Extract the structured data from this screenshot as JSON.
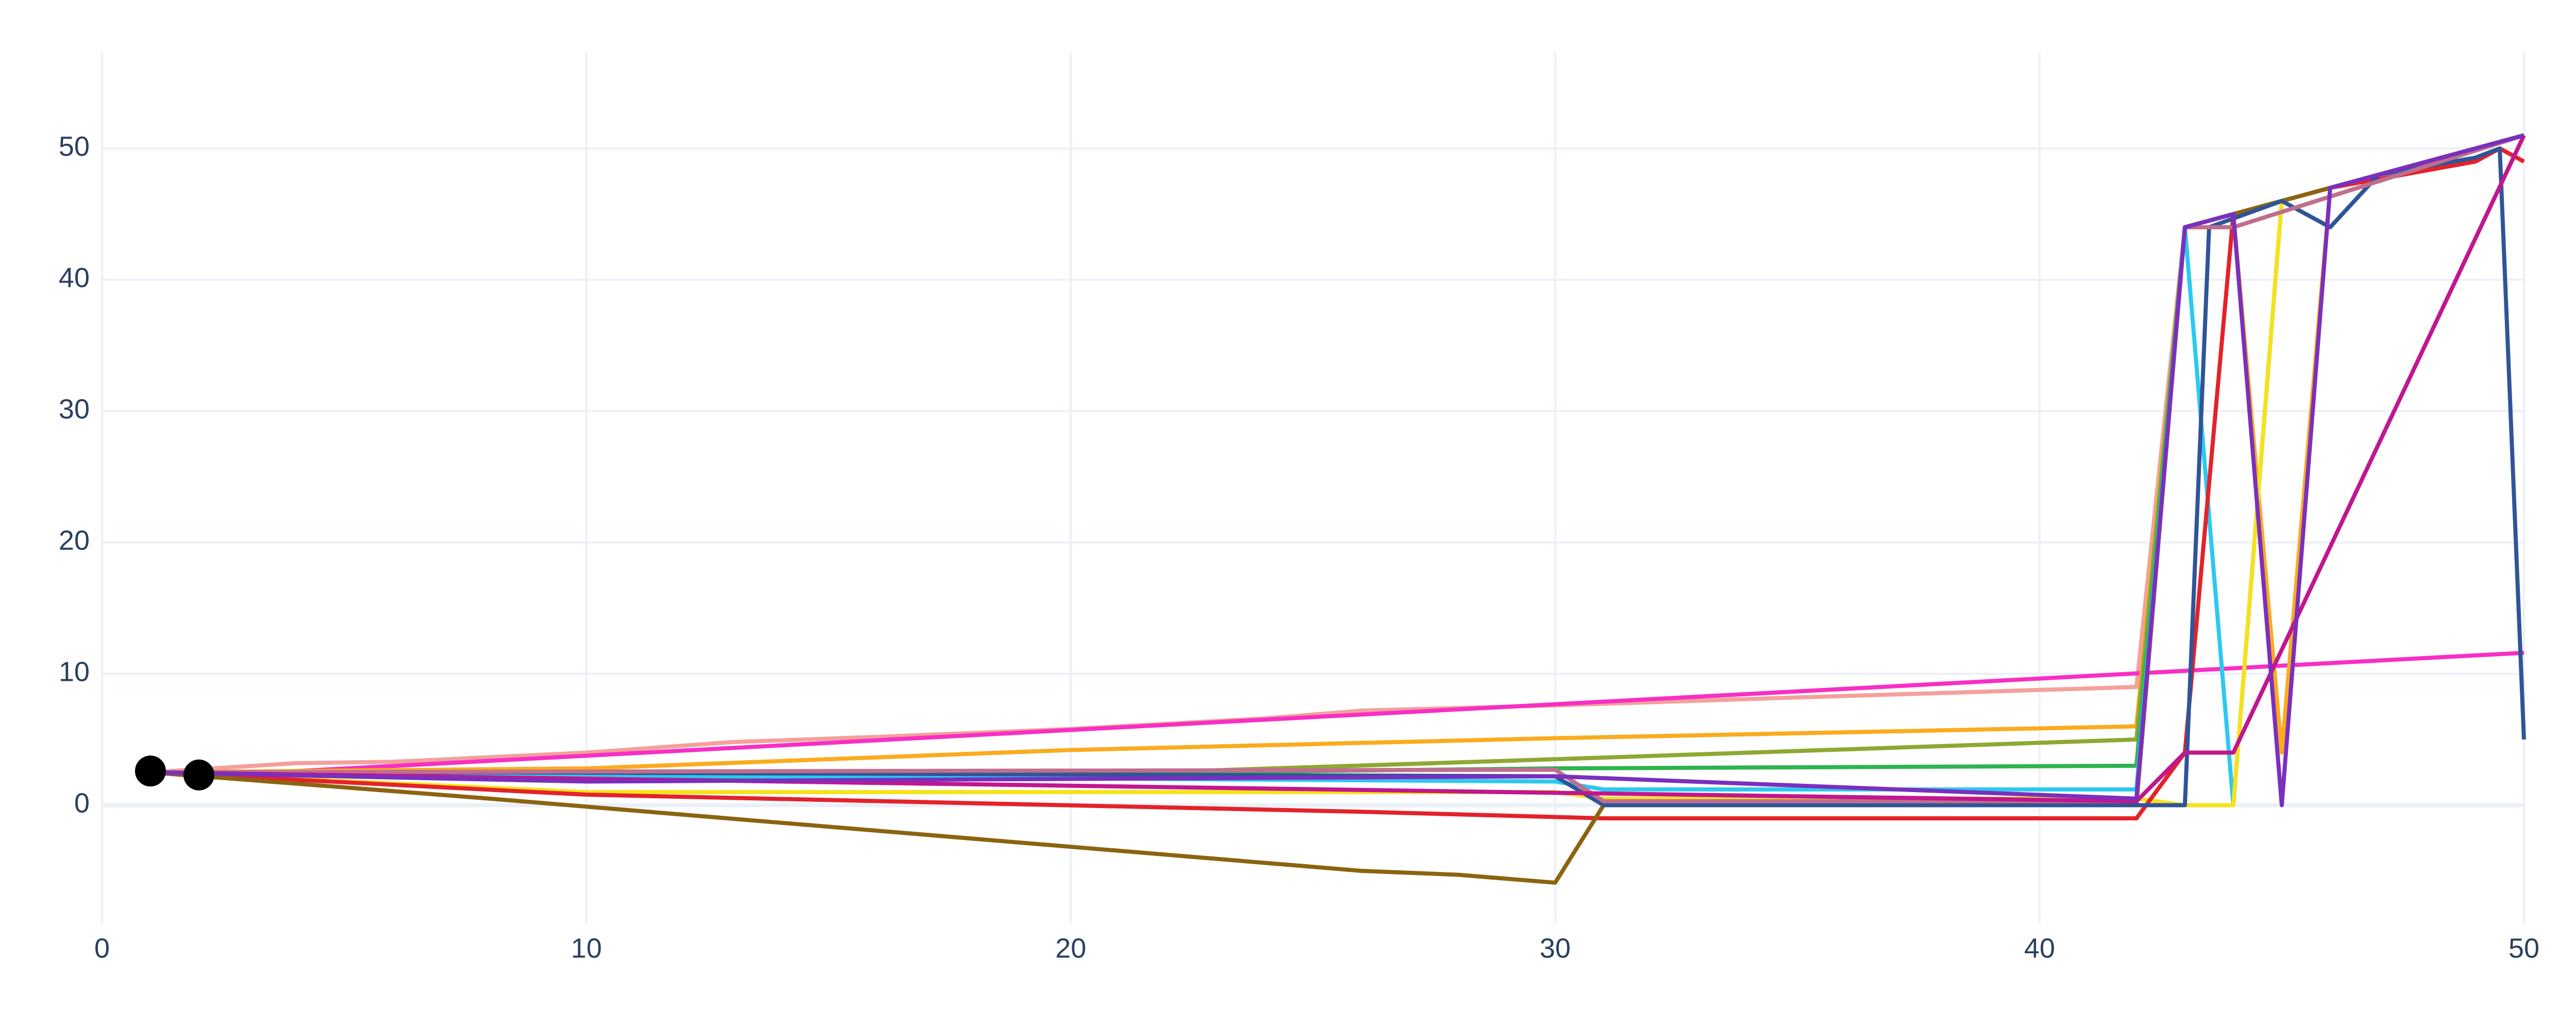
{
  "chart_data": {
    "type": "line",
    "xlim": [
      0,
      50
    ],
    "ylim": [
      -9,
      57.3
    ],
    "xticks": [
      0,
      10,
      20,
      30,
      40,
      50
    ],
    "yticks": [
      0,
      10,
      20,
      30,
      40,
      50
    ],
    "grid": true,
    "series": [
      {
        "color": "#f4a09c",
        "x": [
          1,
          4,
          6,
          10,
          13,
          16,
          20,
          24,
          26,
          30,
          35,
          42,
          43,
          44,
          50
        ],
        "values": [
          2.5,
          3.2,
          3.3,
          4,
          4.8,
          5.2,
          5.8,
          6.6,
          7.2,
          7.6,
          8.2,
          9,
          44,
          44,
          51
        ]
      },
      {
        "color": "#f72fc4",
        "x": [
          1,
          2,
          50
        ],
        "values": [
          2.5,
          2.2,
          11.6
        ]
      },
      {
        "color": "#fbab1e",
        "x": [
          1,
          10,
          20,
          30,
          42,
          43,
          44,
          45,
          46,
          50
        ],
        "values": [
          2.5,
          2.8,
          4.2,
          5.1,
          6,
          44,
          45,
          4,
          47,
          51
        ]
      },
      {
        "color": "#8ea832",
        "x": [
          1,
          20,
          30,
          42,
          43,
          50
        ],
        "values": [
          2.5,
          2.3,
          3.5,
          5,
          44,
          51
        ]
      },
      {
        "color": "#2fb34f",
        "x": [
          1,
          10,
          30,
          42,
          43,
          50
        ],
        "values": [
          2.5,
          2,
          2.8,
          3,
          44,
          51
        ]
      },
      {
        "color": "#2cc9ef",
        "x": [
          1,
          30,
          31,
          42,
          43,
          44,
          45,
          50
        ],
        "values": [
          2.5,
          1.8,
          1.2,
          1.2,
          44,
          0,
          46,
          51
        ]
      },
      {
        "color": "#f6e21c",
        "x": [
          1,
          10,
          30,
          31,
          42,
          43,
          44,
          45,
          46,
          50
        ],
        "values": [
          2.5,
          1,
          1,
          0.5,
          0.5,
          0,
          0,
          46,
          47,
          51
        ]
      },
      {
        "color": "#e4222a",
        "x": [
          1,
          10,
          26,
          31,
          42,
          43,
          44,
          45,
          46,
          49,
          49.5,
          50
        ],
        "values": [
          2.5,
          0.8,
          -0.5,
          -1,
          -1,
          4,
          45,
          46,
          47,
          49,
          50,
          49
        ]
      },
      {
        "color": "#8b6410",
        "x": [
          1,
          8,
          26,
          28,
          30,
          31,
          42,
          43,
          50
        ],
        "values": [
          2.5,
          0.5,
          -5,
          -5.3,
          -5.9,
          0,
          0,
          44,
          51
        ]
      },
      {
        "color": "#2f5597",
        "x": [
          1,
          8,
          30,
          31,
          42,
          43,
          43.5,
          45,
          46,
          47,
          49,
          49.5,
          50
        ],
        "values": [
          2.5,
          2.5,
          2.2,
          0,
          0,
          0,
          44,
          46,
          44,
          48,
          49.3,
          50,
          5
        ]
      },
      {
        "color": "#c06e8e",
        "x": [
          1,
          30,
          31,
          42,
          43,
          44,
          50
        ],
        "values": [
          2.5,
          2.7,
          0.3,
          0.3,
          44,
          44,
          51
        ]
      },
      {
        "color": "#c0178f",
        "x": [
          1,
          42,
          43,
          44,
          50
        ],
        "values": [
          2.5,
          0.3,
          4,
          4,
          51
        ]
      },
      {
        "color": "#7b2fbe",
        "x": [
          1,
          10,
          30,
          42,
          43,
          44,
          45,
          46,
          50
        ],
        "values": [
          2.5,
          1.8,
          2.2,
          0.5,
          44,
          45,
          0,
          47,
          51
        ]
      },
      {
        "color": "#000000",
        "mode": "markers",
        "x": [
          1,
          2
        ],
        "values": [
          2.6,
          2.3
        ]
      }
    ]
  }
}
